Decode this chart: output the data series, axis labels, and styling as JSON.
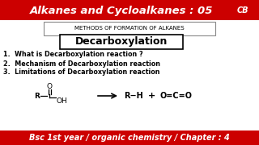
{
  "title": "Alkanes and Cycloalkanes : 05",
  "title_bg": "#cc0000",
  "title_color": "#ffffff",
  "subtitle_box": "METHODS OF FORMATION OF ALKANES",
  "main_topic": "Decarboxylation",
  "points": [
    "1.  What is Decarboxylation reaction ?",
    "2.  Mechanism of Decarboxylation reaction",
    "3.  Limitations of Decarboxylation reaction"
  ],
  "footer": "Bsc 1st year / organic chemistry / Chapter : 4",
  "footer_bg": "#cc0000",
  "footer_color": "#ffffff",
  "bg_color": "#ffffff",
  "cb_circle_color": "#cc0000",
  "cb_text": "CB"
}
